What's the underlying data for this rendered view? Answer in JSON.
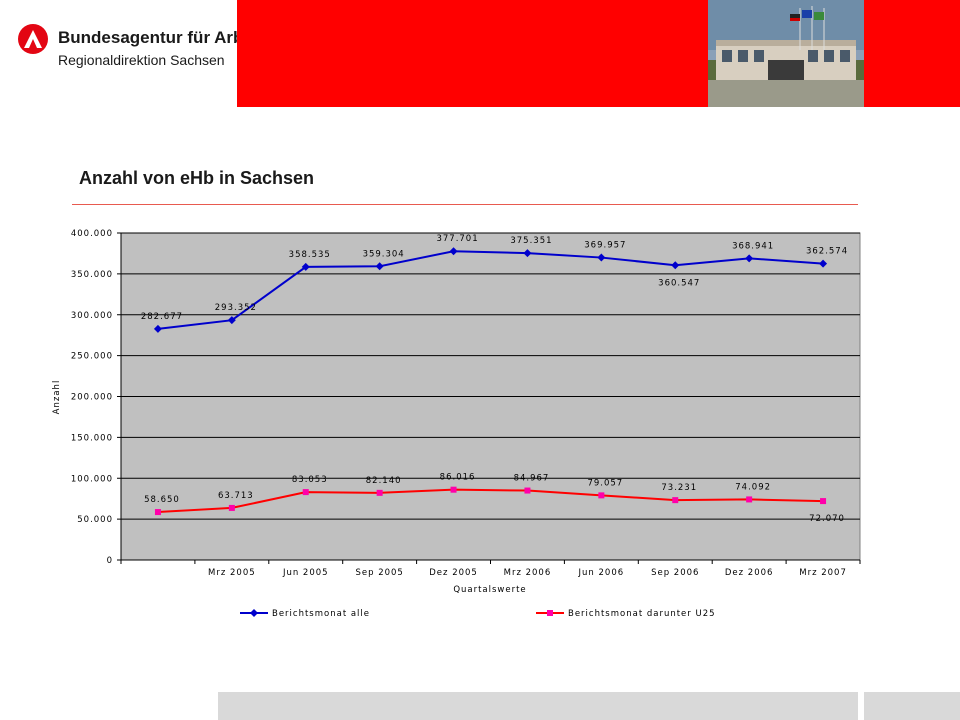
{
  "header": {
    "org_name": "Bundesagentur für Arbeit",
    "division": "Regionaldirektion Sachsen"
  },
  "slide_title": "Anzahl von eHb in Sachsen",
  "colors": {
    "banner": "#ff0000",
    "plot_bg": "#c0c0c0",
    "series1": "#0000cc",
    "series2": "#ff0000",
    "marker2": "#ff00aa"
  },
  "chart_data": {
    "type": "line",
    "categories": [
      "",
      "Mrz 2005",
      "Jun 2005",
      "Sep 2005",
      "Dez 2005",
      "Mrz 2006",
      "Jun 2006",
      "Sep 2006",
      "Dez 2006",
      "Mrz 2007"
    ],
    "series": [
      {
        "name": "Berichtsmonat alle",
        "values": [
          282677,
          293352,
          358535,
          359304,
          377701,
          375351,
          369957,
          360547,
          368941,
          362574
        ],
        "labels": [
          "282.677",
          "293.352",
          "358.535",
          "359.304",
          "377.701",
          "375.351",
          "369.957",
          "360.547",
          "368.941",
          "362.574"
        ]
      },
      {
        "name": "Berichtsmonat darunter U25",
        "values": [
          58650,
          63713,
          83053,
          82140,
          86016,
          84967,
          79057,
          73231,
          74092,
          72070
        ],
        "labels": [
          "58.650",
          "63.713",
          "83.053",
          "82.140",
          "86.016",
          "84.967",
          "79.057",
          "73.231",
          "74.092",
          "72.070"
        ]
      }
    ],
    "ylim": [
      0,
      400000
    ],
    "yticks": [
      0,
      50000,
      100000,
      150000,
      200000,
      250000,
      300000,
      350000,
      400000
    ],
    "ytick_labels": [
      "0",
      "50.000",
      "100.000",
      "150.000",
      "200.000",
      "250.000",
      "300.000",
      "350.000",
      "400.000"
    ],
    "xlabel": "Quartalswerte",
    "ylabel": "Anzahl",
    "grid": true,
    "legend_position": "bottom"
  }
}
